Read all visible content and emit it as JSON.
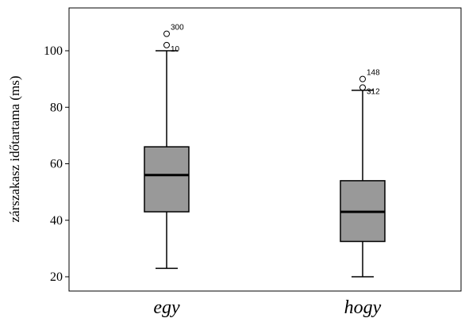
{
  "chart_data": {
    "type": "boxplot",
    "ylabel": "zárszakasz időtartama (ms)",
    "xlabel": "",
    "ylim": [
      15,
      112
    ],
    "yticks": [
      20,
      40,
      60,
      80,
      100
    ],
    "ytick_labels": [
      "20",
      "40",
      "60",
      "80",
      "100"
    ],
    "categories": [
      "egy",
      "hogy"
    ],
    "boxes": [
      {
        "category": "egy",
        "whisker_low": 23,
        "q1": 43,
        "median": 56,
        "q3": 66,
        "whisker_high": 100,
        "outliers": [
          {
            "label": "300",
            "value": 106
          },
          {
            "label": "10",
            "value": 102
          }
        ]
      },
      {
        "category": "hogy",
        "whisker_low": 20,
        "q1": 32.5,
        "median": 43,
        "q3": 54,
        "whisker_high": 86,
        "outliers": [
          {
            "label": "148",
            "value": 90
          },
          {
            "label": "312",
            "value": 87
          }
        ]
      }
    ],
    "box_color": "#999999",
    "grid": false
  }
}
